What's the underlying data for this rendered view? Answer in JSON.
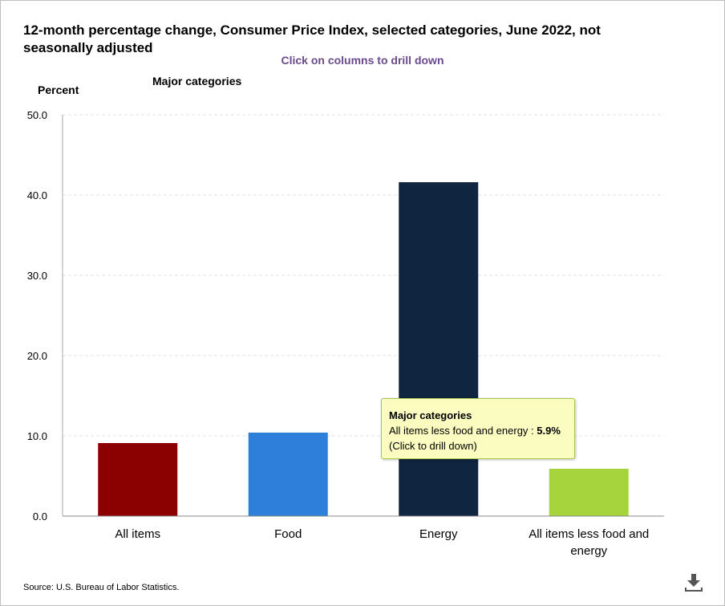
{
  "chart_data": {
    "type": "bar",
    "title": "12-month percentage change, Consumer Price Index, selected categories, June 2022, not seasonally adjusted",
    "subtitle": "Click on columns to drill down",
    "ylabel": "Percent",
    "xlabel": "",
    "legend": "Major categories",
    "ylim": [
      0,
      50
    ],
    "yticks": [
      "0.0",
      "10.0",
      "20.0",
      "30.0",
      "40.0",
      "50.0"
    ],
    "grid": true,
    "categories": [
      "All items",
      "Food",
      "Energy",
      "All items less food and energy"
    ],
    "category_lines": [
      [
        "All items"
      ],
      [
        "Food"
      ],
      [
        "Energy"
      ],
      [
        "All items less food and",
        "energy"
      ]
    ],
    "values": [
      9.1,
      10.4,
      41.6,
      5.9
    ],
    "colors": [
      "#8b0000",
      "#2e7fd9",
      "#0f2540",
      "#a5d43c"
    ]
  },
  "tooltip": {
    "title": "Major categories",
    "label": "All items less food and energy : ",
    "value": "5.9%",
    "hint": "(Click to drill down)"
  },
  "source": "Source: U.S. Bureau of Labor Statistics.",
  "icons": {
    "download": "download-icon"
  }
}
